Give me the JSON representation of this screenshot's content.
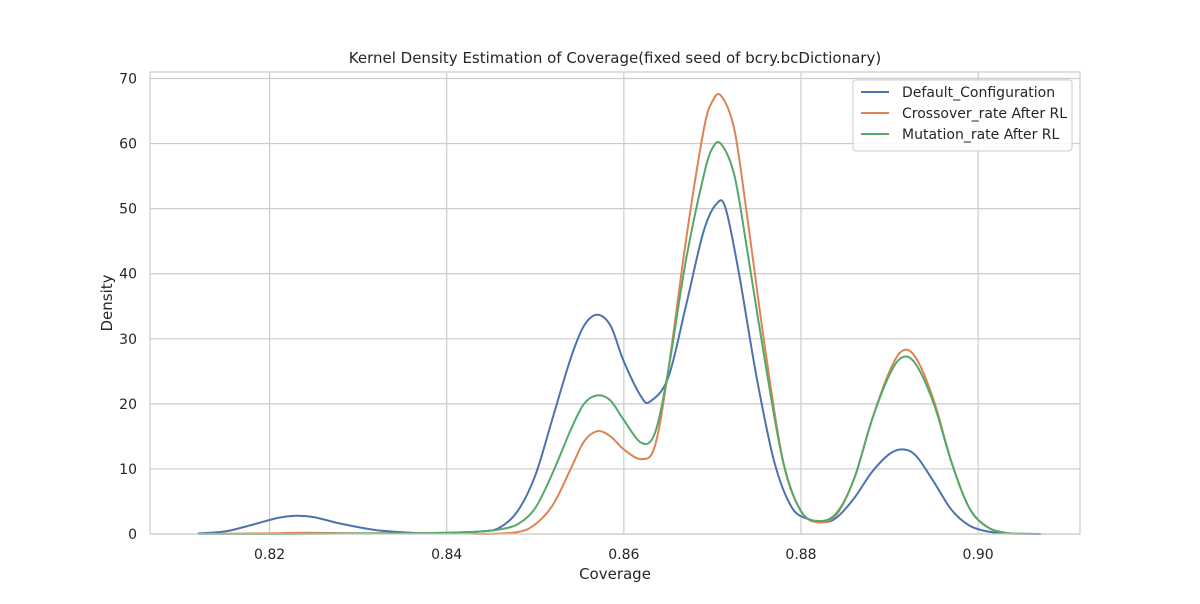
{
  "chart_data": {
    "type": "line",
    "title": "Kernel Density Estimation of Coverage(fixed seed of bcry.bcDictionary)",
    "xlabel": "Coverage",
    "ylabel": "Density",
    "xlim": [
      0.8065,
      0.9115
    ],
    "ylim": [
      0,
      71
    ],
    "xticks": [
      0.82,
      0.84,
      0.86,
      0.88,
      0.9
    ],
    "xtick_labels": [
      "0.82",
      "0.84",
      "0.86",
      "0.88",
      "0.90"
    ],
    "yticks": [
      0,
      10,
      20,
      30,
      40,
      50,
      60,
      70
    ],
    "ytick_labels": [
      "0",
      "10",
      "20",
      "30",
      "40",
      "50",
      "60",
      "70"
    ],
    "grid": true,
    "legend_position": "top-right",
    "series": [
      {
        "name": "Default_Configuration",
        "color": "#4c72b0",
        "x": [
          0.812,
          0.815,
          0.818,
          0.821,
          0.823,
          0.825,
          0.828,
          0.832,
          0.836,
          0.84,
          0.844,
          0.846,
          0.848,
          0.85,
          0.852,
          0.854,
          0.8555,
          0.857,
          0.8585,
          0.86,
          0.862,
          0.863,
          0.865,
          0.867,
          0.869,
          0.8705,
          0.8715,
          0.873,
          0.875,
          0.877,
          0.879,
          0.881,
          0.8825,
          0.884,
          0.886,
          0.888,
          0.89,
          0.8915,
          0.893,
          0.895,
          0.897,
          0.899,
          0.901,
          0.903,
          0.905,
          0.907
        ],
        "y": [
          0.1,
          0.4,
          1.4,
          2.5,
          2.8,
          2.6,
          1.6,
          0.6,
          0.2,
          0.1,
          0.4,
          1.0,
          3.5,
          9.0,
          18.0,
          27.0,
          32.0,
          33.7,
          32.0,
          26.5,
          21.0,
          20.4,
          24.0,
          35.0,
          46.5,
          50.8,
          50.0,
          40.0,
          24.0,
          11.0,
          4.0,
          2.2,
          1.8,
          2.5,
          5.5,
          9.5,
          12.3,
          13.0,
          12.0,
          8.0,
          3.7,
          1.3,
          0.4,
          0.1,
          0.03,
          0.0
        ]
      },
      {
        "name": "Crossover_rate After RL",
        "color": "#dd8452",
        "x": [
          0.812,
          0.82,
          0.824,
          0.83,
          0.836,
          0.84,
          0.844,
          0.848,
          0.85,
          0.852,
          0.854,
          0.8555,
          0.857,
          0.8585,
          0.86,
          0.862,
          0.8635,
          0.865,
          0.867,
          0.869,
          0.87,
          0.871,
          0.8725,
          0.874,
          0.876,
          0.878,
          0.88,
          0.882,
          0.884,
          0.886,
          0.888,
          0.89,
          0.8915,
          0.893,
          0.895,
          0.897,
          0.899,
          0.901,
          0.903,
          0.905
        ],
        "y": [
          0.0,
          0.1,
          0.2,
          0.1,
          0.1,
          0.2,
          0.0,
          0.3,
          1.5,
          4.5,
          10.0,
          14.2,
          15.8,
          15.0,
          13.0,
          11.5,
          13.5,
          25.0,
          45.0,
          62.0,
          66.5,
          67.3,
          62.0,
          48.0,
          28.0,
          11.0,
          3.5,
          1.8,
          3.0,
          8.5,
          17.5,
          25.0,
          28.2,
          27.0,
          20.5,
          11.0,
          4.0,
          1.1,
          0.2,
          0.03
        ]
      },
      {
        "name": "Mutation_rate After RL",
        "color": "#55a868",
        "x": [
          0.812,
          0.822,
          0.83,
          0.836,
          0.84,
          0.844,
          0.846,
          0.848,
          0.85,
          0.852,
          0.854,
          0.8555,
          0.857,
          0.8585,
          0.86,
          0.862,
          0.8635,
          0.865,
          0.867,
          0.869,
          0.87,
          0.871,
          0.8725,
          0.874,
          0.876,
          0.878,
          0.88,
          0.882,
          0.884,
          0.886,
          0.888,
          0.89,
          0.8915,
          0.893,
          0.895,
          0.897,
          0.899,
          0.901,
          0.903,
          0.905
        ],
        "y": [
          0.0,
          0.0,
          0.1,
          0.1,
          0.2,
          0.4,
          0.7,
          1.5,
          4.0,
          9.5,
          16.0,
          20.0,
          21.3,
          20.5,
          17.5,
          14.0,
          15.5,
          25.0,
          42.0,
          55.0,
          59.3,
          59.9,
          55.0,
          43.0,
          26.0,
          11.0,
          3.5,
          2.0,
          3.2,
          8.5,
          17.5,
          24.5,
          27.2,
          26.0,
          20.0,
          11.0,
          4.0,
          1.1,
          0.2,
          0.03
        ]
      }
    ]
  }
}
